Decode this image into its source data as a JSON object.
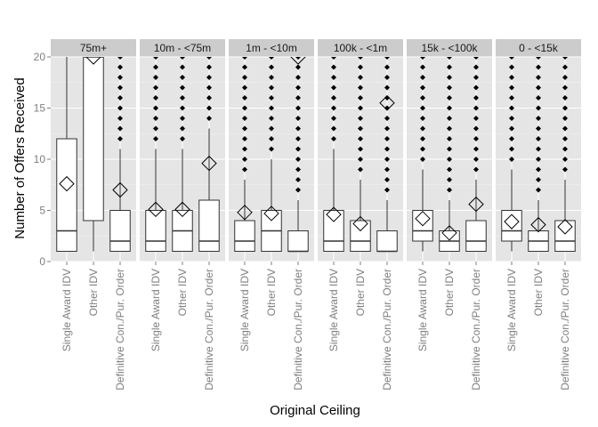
{
  "chart_data": {
    "type": "box",
    "xlabel": "Original Ceiling",
    "ylabel": "Number of Offers Received",
    "ylim": [
      0,
      20
    ],
    "yticks": [
      0,
      5,
      10,
      15,
      20
    ],
    "categories": [
      "Single Award IDV",
      "Other IDV",
      "Definitive Con./Pur. Order"
    ],
    "grid": true,
    "colors": {
      "panel_background": "#e5e5e5",
      "strip_background": "#cccccc",
      "grid_major": "#ffffff",
      "grid_minor": "#f2f2f2",
      "box_fill": "#ffffff",
      "box_stroke": "#333333",
      "outlier": "#000000"
    },
    "panels": [
      {
        "strip": "75m+",
        "boxes": [
          {
            "category": "Single Award IDV",
            "q1": 1,
            "median": 3,
            "q3": 12,
            "lower": 1,
            "upper": 20,
            "mean": 7.6,
            "outliers": []
          },
          {
            "category": "Other IDV",
            "q1": 4,
            "median": 20,
            "q3": 20,
            "lower": 1,
            "upper": 20,
            "mean": 21,
            "outliers": []
          },
          {
            "category": "Definitive Con./Pur. Order",
            "q1": 1,
            "median": 2,
            "q3": 5,
            "lower": 1,
            "upper": 11,
            "mean": 7.0,
            "outliers": [
              12,
              13,
              14,
              15,
              16,
              17,
              18,
              19,
              20
            ]
          }
        ]
      },
      {
        "strip": "10m - <75m",
        "boxes": [
          {
            "category": "Single Award IDV",
            "q1": 1,
            "median": 2,
            "q3": 5,
            "lower": 1,
            "upper": 11,
            "mean": 5.1,
            "outliers": [
              12,
              13,
              14,
              15,
              16,
              17,
              18,
              19,
              20
            ]
          },
          {
            "category": "Other IDV",
            "q1": 1,
            "median": 3,
            "q3": 5,
            "lower": 1,
            "upper": 11,
            "mean": 5.1,
            "outliers": [
              12,
              13,
              14,
              15,
              16,
              17,
              18,
              19,
              20
            ]
          },
          {
            "category": "Definitive Con./Pur. Order",
            "q1": 1,
            "median": 2,
            "q3": 6,
            "lower": 1,
            "upper": 13,
            "mean": 9.6,
            "outliers": [
              14,
              15,
              16,
              17,
              18,
              19,
              20
            ]
          }
        ]
      },
      {
        "strip": "1m - <10m",
        "boxes": [
          {
            "category": "Single Award IDV",
            "q1": 1,
            "median": 2,
            "q3": 4,
            "lower": 1,
            "upper": 8,
            "mean": 4.8,
            "outliers": [
              9,
              10,
              11,
              12,
              13,
              14,
              15,
              16,
              17,
              18,
              19,
              20
            ]
          },
          {
            "category": "Other IDV",
            "q1": 1,
            "median": 3,
            "q3": 5,
            "lower": 1,
            "upper": 10,
            "mean": 4.7,
            "outliers": [
              11,
              12,
              13,
              14,
              15,
              16,
              17,
              18,
              19,
              20
            ]
          },
          {
            "category": "Definitive Con./Pur. Order",
            "q1": 1,
            "median": 1,
            "q3": 3,
            "lower": 1,
            "upper": 6,
            "mean": 20,
            "outliers": [
              7,
              8,
              9,
              10,
              11,
              12,
              13,
              14,
              15,
              16,
              17,
              18,
              19,
              20
            ]
          }
        ]
      },
      {
        "strip": "100k - <1m",
        "boxes": [
          {
            "category": "Single Award IDV",
            "q1": 1,
            "median": 2,
            "q3": 5,
            "lower": 1,
            "upper": 11,
            "mean": 4.6,
            "outliers": [
              12,
              13,
              14,
              15,
              16,
              17,
              18,
              19,
              20
            ]
          },
          {
            "category": "Other IDV",
            "q1": 1,
            "median": 2,
            "q3": 4,
            "lower": 1,
            "upper": 8,
            "mean": 3.7,
            "outliers": [
              9,
              10,
              11,
              12,
              13,
              14,
              15,
              16,
              17,
              18,
              19,
              20
            ]
          },
          {
            "category": "Definitive Con./Pur. Order",
            "q1": 1,
            "median": 1,
            "q3": 3,
            "lower": 1,
            "upper": 6,
            "mean": 15.5,
            "outliers": [
              7,
              8,
              9,
              10,
              11,
              12,
              13,
              14,
              15,
              16,
              17,
              18,
              19,
              20
            ]
          }
        ]
      },
      {
        "strip": "15k - <100k",
        "boxes": [
          {
            "category": "Single Award IDV",
            "q1": 2,
            "median": 3,
            "q3": 5,
            "lower": 1,
            "upper": 9,
            "mean": 4.2,
            "outliers": [
              10,
              11,
              12,
              13,
              14,
              15,
              16,
              17,
              18,
              19,
              20
            ]
          },
          {
            "category": "Other IDV",
            "q1": 1,
            "median": 2,
            "q3": 3,
            "lower": 1,
            "upper": 6,
            "mean": 2.8,
            "outliers": [
              7,
              8,
              9,
              10,
              11,
              12,
              13,
              14,
              15,
              16,
              17,
              18,
              19,
              20
            ]
          },
          {
            "category": "Definitive Con./Pur. Order",
            "q1": 1,
            "median": 2,
            "q3": 4,
            "lower": 1,
            "upper": 8,
            "mean": 5.6,
            "outliers": [
              9,
              10,
              11,
              12,
              13,
              14,
              15,
              16,
              17,
              18,
              19,
              20
            ]
          }
        ]
      },
      {
        "strip": "0 - <15k",
        "boxes": [
          {
            "category": "Single Award IDV",
            "q1": 2,
            "median": 3,
            "q3": 5,
            "lower": 1,
            "upper": 9,
            "mean": 3.9,
            "outliers": [
              10,
              11,
              12,
              13,
              14,
              15,
              16,
              17,
              18,
              19,
              20
            ]
          },
          {
            "category": "Other IDV",
            "q1": 1,
            "median": 2,
            "q3": 3,
            "lower": 1,
            "upper": 6,
            "mean": 3.6,
            "outliers": [
              7,
              8,
              9,
              10,
              11,
              12,
              13,
              14,
              15,
              16,
              17,
              18,
              19,
              20
            ]
          },
          {
            "category": "Definitive Con./Pur. Order",
            "q1": 1,
            "median": 2,
            "q3": 4,
            "lower": 1,
            "upper": 8,
            "mean": 3.4,
            "outliers": [
              9,
              10,
              11,
              12,
              13,
              14,
              15,
              16,
              17,
              18,
              19,
              20
            ]
          }
        ]
      }
    ]
  }
}
